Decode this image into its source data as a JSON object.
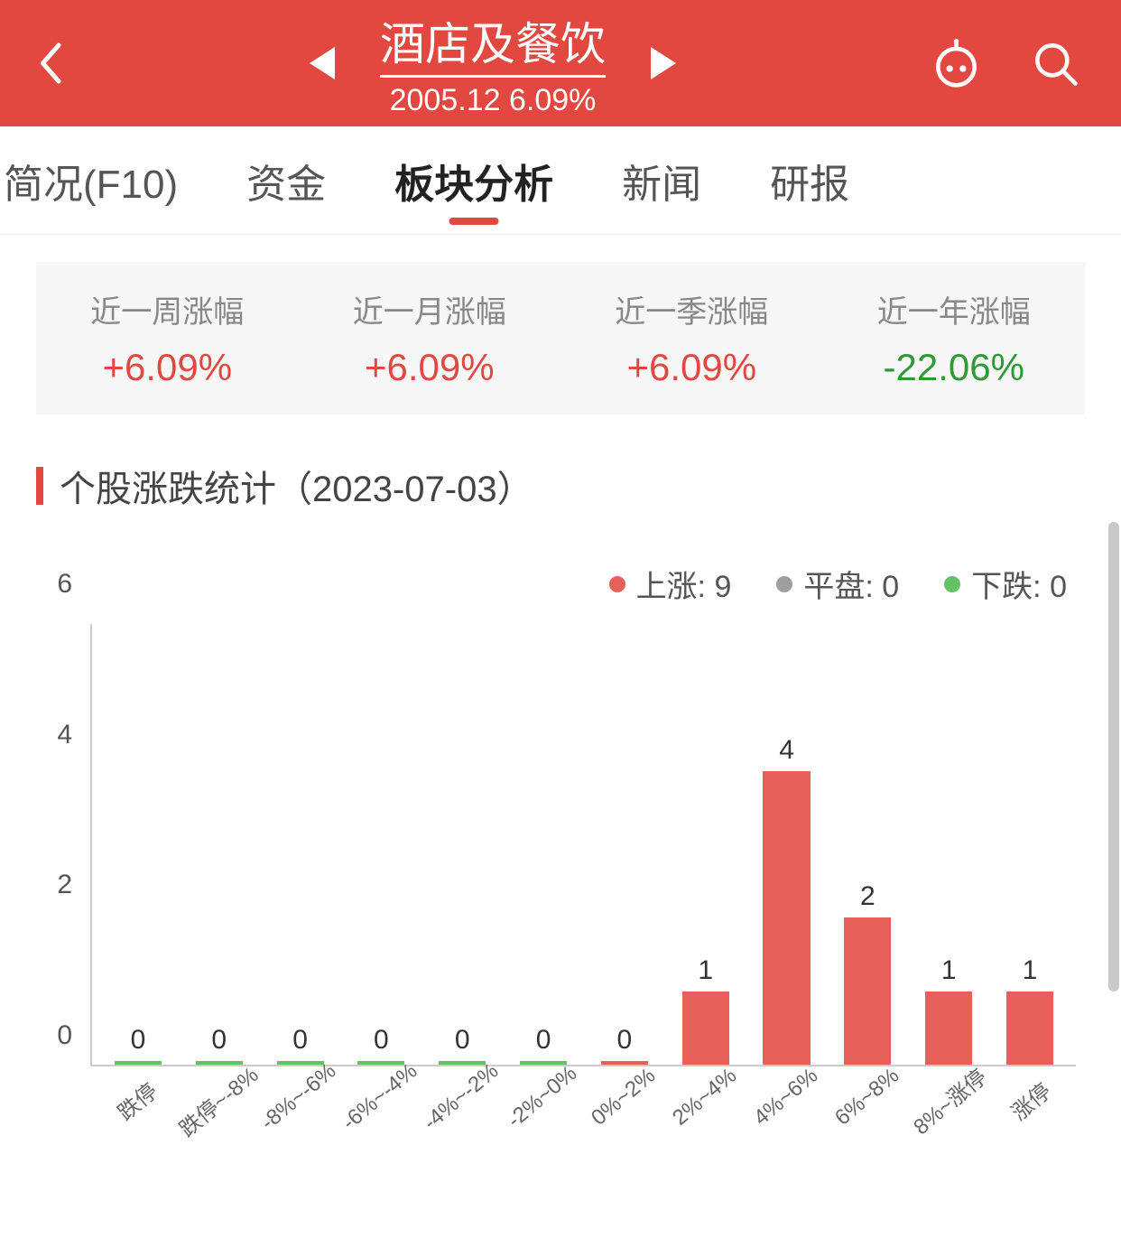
{
  "header": {
    "title": "酒店及餐饮",
    "subtitle": "2005.12 6.09%",
    "bg_color": "#e2483f"
  },
  "tabs": {
    "items": [
      "简况(F10)",
      "资金",
      "板块分析",
      "新闻",
      "研报"
    ],
    "active_index": 2
  },
  "cards": [
    {
      "label": "近一周涨幅",
      "value": "+6.09%",
      "direction": "up"
    },
    {
      "label": "近一月涨幅",
      "value": "+6.09%",
      "direction": "up"
    },
    {
      "label": "近一季涨幅",
      "value": "+6.09%",
      "direction": "up"
    },
    {
      "label": "近一年涨幅",
      "value": "-22.06%",
      "direction": "down"
    }
  ],
  "section": {
    "title": "个股涨跌统计（2023-07-03）"
  },
  "legend": [
    {
      "text": "上涨: 9",
      "color": "#e76059"
    },
    {
      "text": "平盘: 0",
      "color": "#9e9e9e"
    },
    {
      "text": "下跌: 0",
      "color": "#63c264"
    }
  ],
  "chart": {
    "type": "bar",
    "y_ticks": [
      "0",
      "2",
      "4",
      "6"
    ],
    "ylim_max": 6,
    "categories": [
      "跌停",
      "跌停~-8%",
      "-8%~-6%",
      "-6%~-4%",
      "-4%~-2%",
      "-2%~0%",
      "0%~2%",
      "2%~4%",
      "4%~6%",
      "6%~8%",
      "8%~涨停",
      "涨停"
    ],
    "values": [
      0,
      0,
      0,
      0,
      0,
      0,
      0,
      1,
      4,
      2,
      1,
      1
    ],
    "bar_colors": [
      "#63c264",
      "#63c264",
      "#63c264",
      "#63c264",
      "#63c264",
      "#63c264",
      "#e76059",
      "#e76059",
      "#e76059",
      "#e76059",
      "#e76059",
      "#e76059"
    ],
    "value_label_fontsize": 30,
    "x_label_fontsize": 24,
    "y_label_fontsize": 30,
    "axis_color": "#cccccc",
    "background_color": "#ffffff"
  },
  "colors": {
    "up": "#e2483f",
    "down": "#2e9a34"
  }
}
